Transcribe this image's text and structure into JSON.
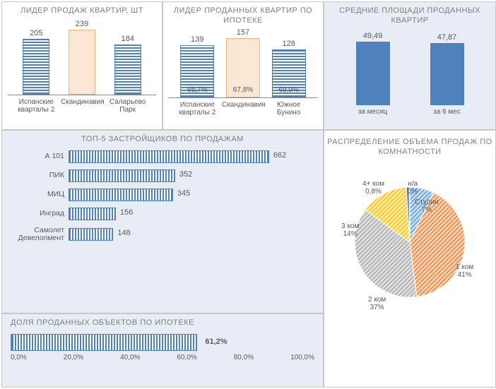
{
  "colors": {
    "series_blue": "#4f81bd",
    "highlight_fill": "#fce6d4",
    "highlight_border": "#f4b183",
    "panel_blue_bg": "#e8ecf4",
    "text_gray": "#595959",
    "title_gray": "#7f7f7f",
    "axis": "#888888",
    "border": "#c8c8c8"
  },
  "chart1": {
    "title": "ЛИДЕР ПРОДАЖ КВАРТИР, ШТ",
    "type": "bar",
    "categories": [
      "Испанские кварталы 2",
      "Скандинавия",
      "Саларьево Парк"
    ],
    "values": [
      205,
      239,
      184
    ],
    "highlight_index": 1,
    "ymax": 260
  },
  "chart2": {
    "title": "ЛИДЕР ПРОДАННЫХ КВАРТИР ПО ИПОТЕКЕ",
    "type": "bar",
    "categories": [
      "Испанские кварталы 2",
      "Скандинавия",
      "Южное Бунино"
    ],
    "values": [
      139,
      157,
      128
    ],
    "inner_labels": [
      "65,7%",
      "67,8%",
      "69,9%"
    ],
    "highlight_index": 1,
    "ymax": 170
  },
  "chart3": {
    "title": "СРЕДНИЕ ПЛОЩАДИ ПРОДАННЫХ КВАРТИР",
    "type": "bar",
    "categories": [
      "за месяц",
      "за 6 мес"
    ],
    "values": [
      49.49,
      47.87
    ],
    "value_labels": [
      "49,49",
      "47,87"
    ],
    "ymax": 55
  },
  "chart4": {
    "title": "ТОП-5 ЗАСТРОЙЩИКОВ ПО ПРОДАЖАМ",
    "type": "hbar",
    "labels": [
      "А 101",
      "ПИК",
      "МИЦ",
      "Инград",
      "Самолет Девелопмент"
    ],
    "values": [
      662,
      352,
      345,
      156,
      148
    ],
    "xmax": 700
  },
  "chart5": {
    "title": "РАСПРЕДЕЛЕНИЕ ОБЪЕМА ПРОДАЖ ПО КОМНАТНОСТИ",
    "type": "pie",
    "slices": [
      {
        "label": "Студии",
        "pct_label": "7%",
        "value": 7,
        "color": "#5b9bd5",
        "hatch": "diag"
      },
      {
        "label": "1 ком",
        "pct_label": "41%",
        "value": 41,
        "color": "#ed7d31",
        "hatch": "diag"
      },
      {
        "label": "2 ком",
        "pct_label": "37%",
        "value": 37,
        "color": "#a5a5a5",
        "hatch": "diag"
      },
      {
        "label": "3 ком",
        "pct_label": "14%",
        "value": 14,
        "color": "#ffc000",
        "hatch": "diag"
      },
      {
        "label": "4+ ком",
        "pct_label": "0,8%",
        "value": 0.8,
        "color": "#4472c4",
        "hatch": "none"
      },
      {
        "label": "н/а",
        "pct_label": "0%",
        "value": 0.2,
        "color": "#70ad47",
        "hatch": "none"
      }
    ]
  },
  "chart6": {
    "title": "ДОЛЯ ПРОДАННЫХ ОБЪЕКТОВ ПО ИПОТЕКЕ",
    "type": "single_hbar",
    "value": 61.2,
    "value_label": "61,2%",
    "ticks": [
      "0,0%",
      "20,0%",
      "40,0%",
      "60,0%",
      "80,0%",
      "100,0%"
    ],
    "xmax": 100
  }
}
